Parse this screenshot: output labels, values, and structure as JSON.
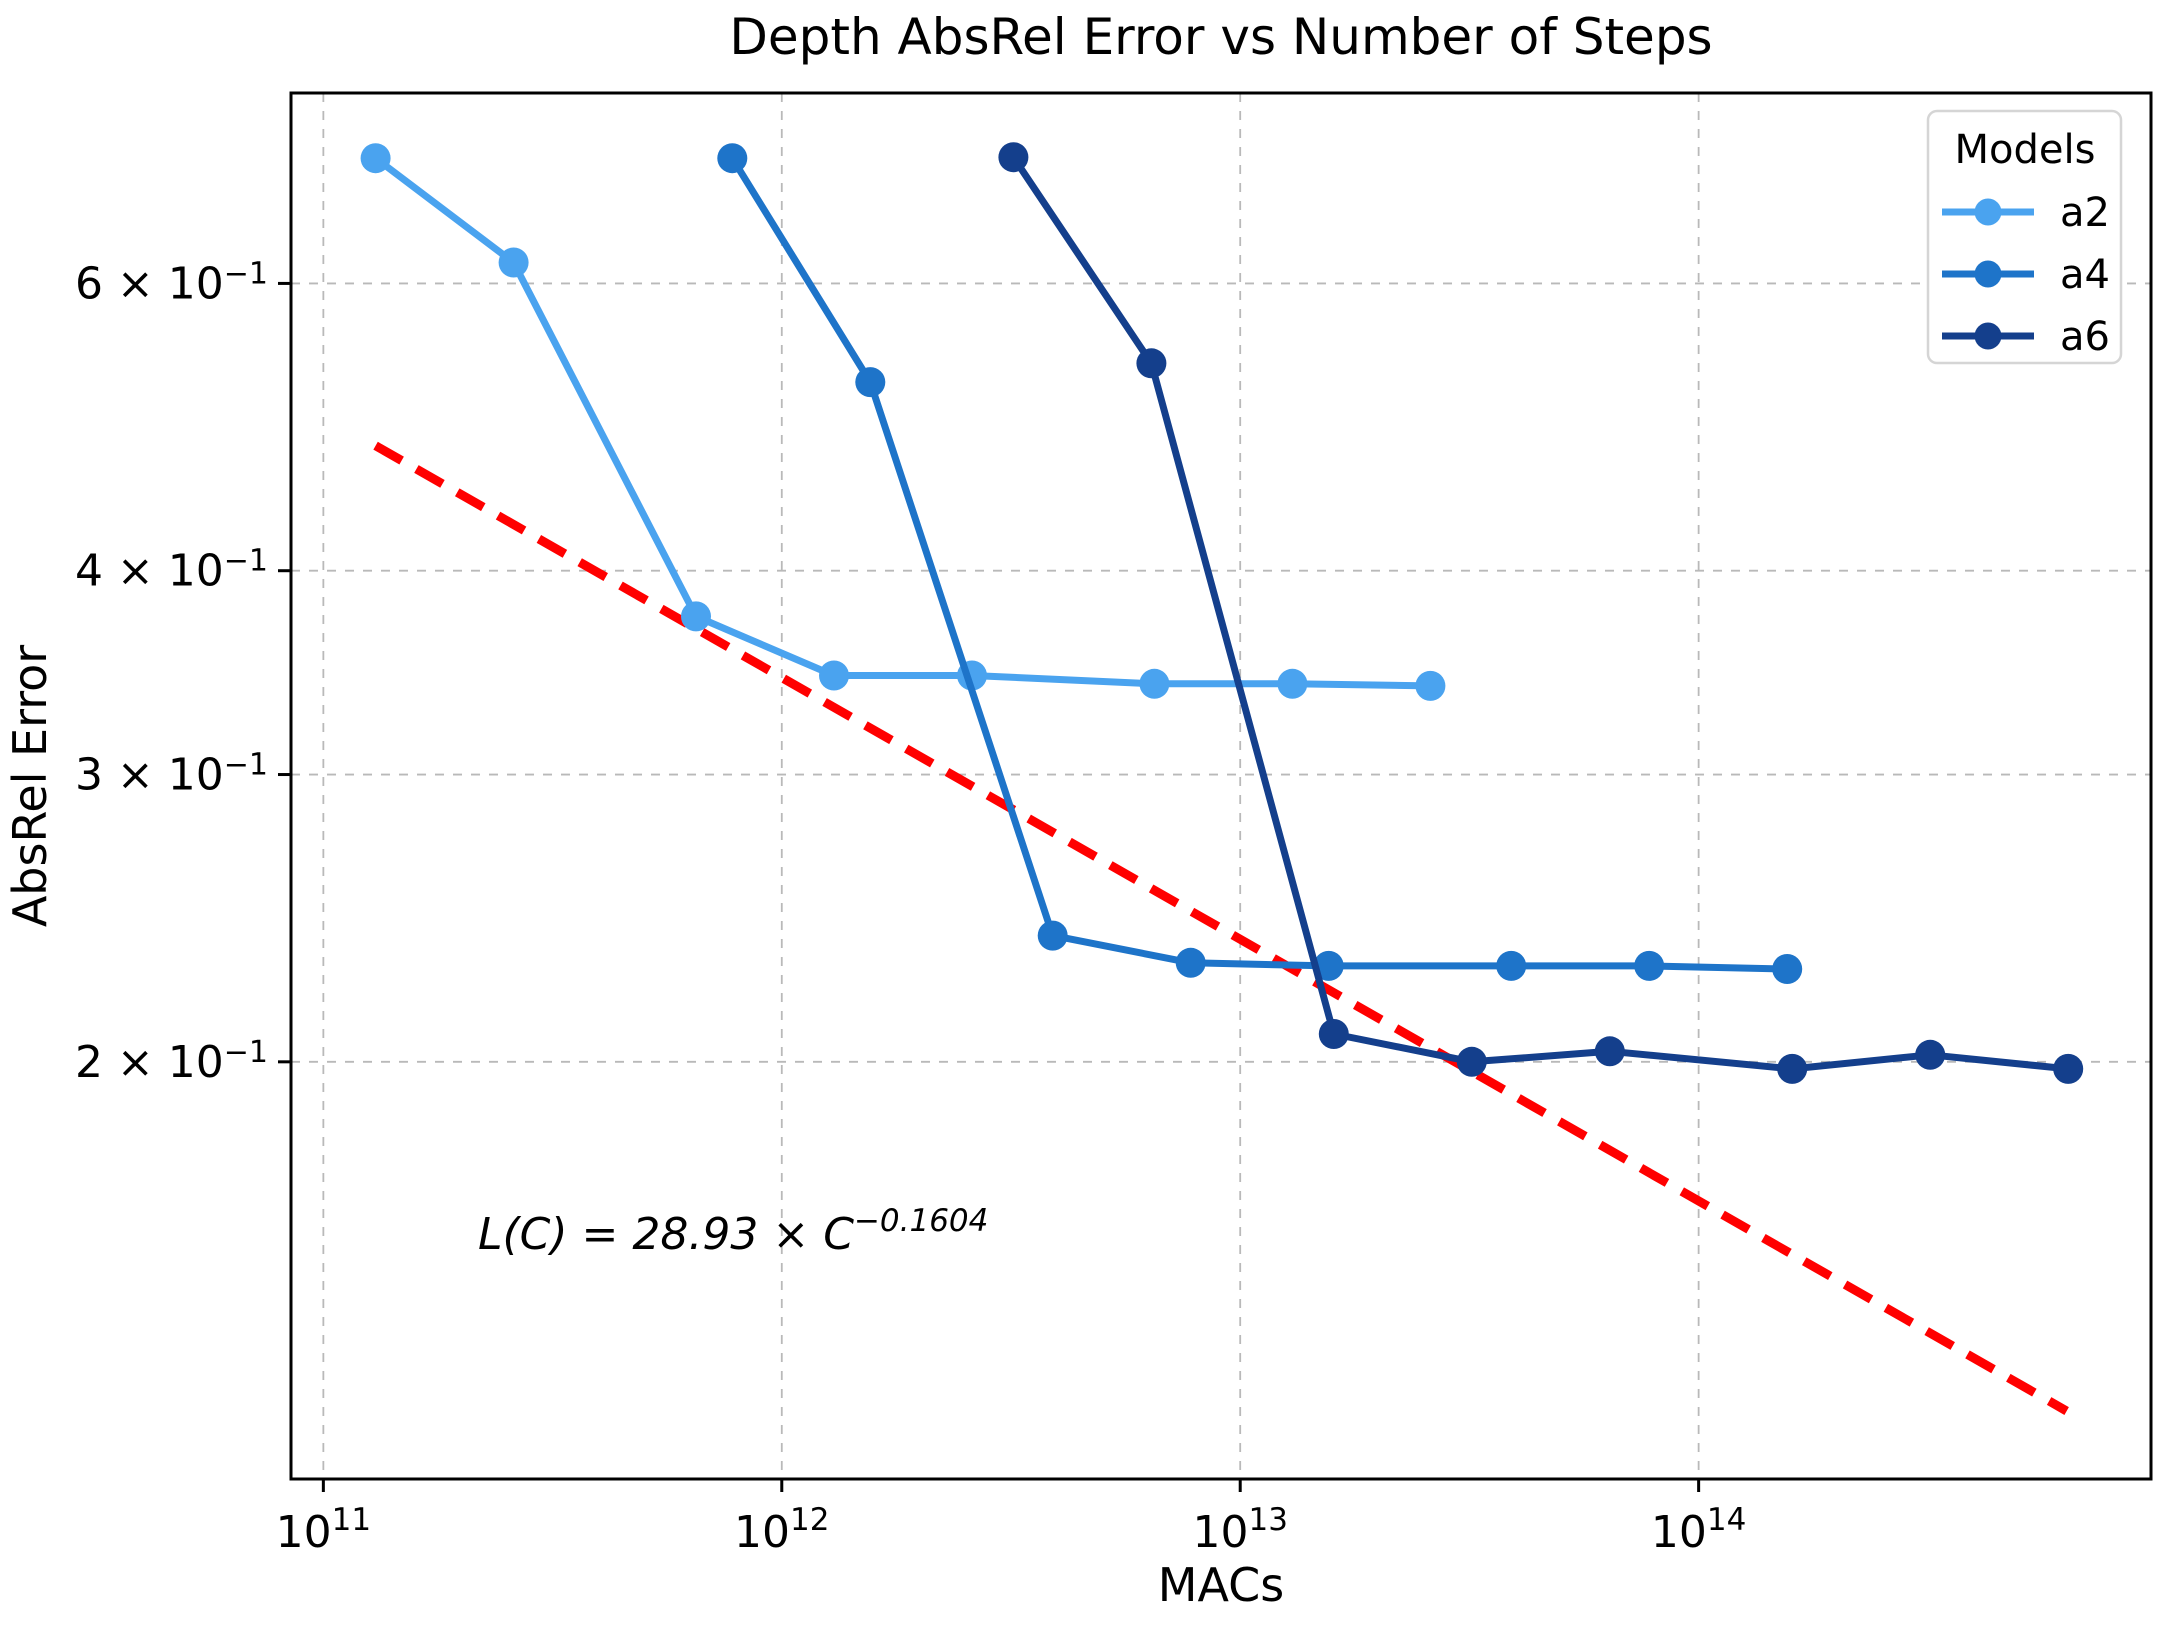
{
  "figure": {
    "title": "Depth AbsRel Error vs Number of Steps",
    "xlabel": "MACs",
    "ylabel": "AbsRel Error"
  },
  "chart_data": {
    "type": "line",
    "title": "Depth AbsRel Error vs Number of Steps",
    "xlabel": "MACs",
    "ylabel": "AbsRel Error",
    "x_scale": "log",
    "y_scale": "log",
    "grid": true,
    "xlim": [
      85000000000.0,
      970000000000000.0
    ],
    "ylim": [
      0.111,
      0.785
    ],
    "x_ticks": [
      {
        "value": 100000000000.0,
        "main": "10",
        "sup": "11"
      },
      {
        "value": 1000000000000.0,
        "main": "10",
        "sup": "12"
      },
      {
        "value": 10000000000000.0,
        "main": "10",
        "sup": "13"
      },
      {
        "value": 100000000000000.0,
        "main": "10",
        "sup": "14"
      }
    ],
    "y_ticks": [
      {
        "value": 0.6,
        "main": "6 × 10",
        "sup": "−1"
      },
      {
        "value": 0.4,
        "main": "4 × 10",
        "sup": "−1"
      },
      {
        "value": 0.3,
        "main": "3 × 10",
        "sup": "−1"
      },
      {
        "value": 0.2,
        "main": "2 × 10",
        "sup": "−1"
      }
    ],
    "legend": {
      "title": "Models",
      "position": "upper right",
      "entries": [
        "a2",
        "a4",
        "a6"
      ]
    },
    "series": [
      {
        "name": "a2",
        "color": "#4aa3ef",
        "x": [
          130000000000.0,
          260000000000.0,
          650000000000.0,
          1300000000000.0,
          2600000000000.0,
          6500000000000.0,
          13000000000000.0,
          26000000000000.0
        ],
        "y": [
          0.716,
          0.618,
          0.375,
          0.345,
          0.345,
          0.341,
          0.341,
          0.34
        ]
      },
      {
        "name": "a4",
        "color": "#1e74c9",
        "x": [
          780000000000.0,
          1560000000000.0,
          3900000000000.0,
          7800000000000.0,
          15600000000000.0,
          39000000000000.0,
          78000000000000.0,
          156000000000000.0
        ],
        "y": [
          0.716,
          0.522,
          0.239,
          0.23,
          0.229,
          0.229,
          0.229,
          0.228
        ]
      },
      {
        "name": "a6",
        "color": "#143f8c",
        "x": [
          3200000000000.0,
          6400000000000.0,
          16000000000000.0,
          32000000000000.0,
          64000000000000.0,
          160000000000000.0,
          320000000000000.0,
          640000000000000.0
        ],
        "y": [
          0.717,
          0.536,
          0.208,
          0.2,
          0.203,
          0.198,
          0.202,
          0.198
        ]
      }
    ],
    "fit": {
      "label": "L(C) = 28.93 × C^−0.1604",
      "label_main": "L(C) = 28.93 × C",
      "label_exp": "−0.1604",
      "coefficient": 28.93,
      "exponent": -0.1604,
      "x_start": 130000000000.0,
      "x_end": 635000000000000.0,
      "color": "#ff0000",
      "style": "dashed"
    },
    "colors": {
      "grid": "#b9b9b9",
      "spine": "#000000",
      "legend_border": "#d5d5d5",
      "background": "#ffffff"
    }
  }
}
